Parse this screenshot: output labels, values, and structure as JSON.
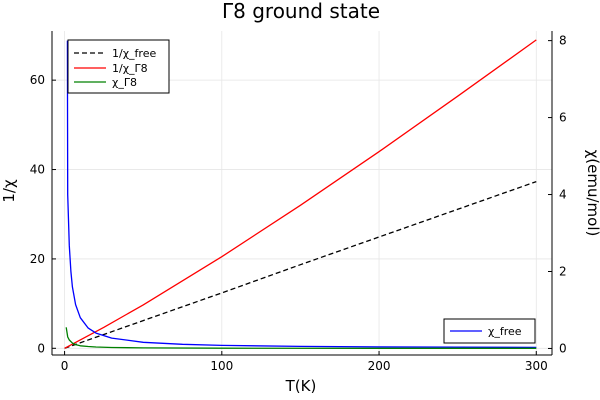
{
  "chart_data": {
    "type": "line",
    "title": "Γ8 ground state",
    "xlabel": "T(K)",
    "ylabel_left": "1/χ",
    "ylabel_right": "χ(emu/mol)",
    "xlim": [
      -8,
      310
    ],
    "ylim_left": [
      -1.5,
      71
    ],
    "ylim_right": [
      -0.17,
      8.25
    ],
    "x_ticks": [
      0,
      100,
      200,
      300
    ],
    "y_ticks_left": [
      0,
      20,
      40,
      60
    ],
    "y_ticks_right": [
      0,
      2,
      4,
      6,
      8
    ],
    "grid": true,
    "legend_left": {
      "placement": "top-left",
      "entries": [
        {
          "label": "1/χ_free",
          "color": "#000000",
          "style": "dashed"
        },
        {
          "label": "1/χ_Γ8",
          "color": "#ff0000",
          "style": "solid"
        },
        {
          "label": "χ_Γ8",
          "color": "#008000",
          "style": "solid"
        }
      ]
    },
    "legend_right": {
      "placement": "bottom-right",
      "entries": [
        {
          "label": "χ_free",
          "color": "#0000ff",
          "style": "solid"
        }
      ]
    },
    "series": [
      {
        "name": "1/χ_free",
        "axis": "left",
        "color": "#000000",
        "style": "dashed",
        "x": [
          0,
          50,
          100,
          150,
          200,
          250,
          300
        ],
        "y": [
          0,
          6.2,
          12.4,
          18.7,
          24.9,
          31.1,
          37.3
        ]
      },
      {
        "name": "1/χ_Γ8",
        "axis": "left",
        "color": "#ff0000",
        "style": "solid",
        "x": [
          0,
          25,
          50,
          100,
          150,
          200,
          250,
          300
        ],
        "y": [
          0,
          4.7,
          9.7,
          20.5,
          32.0,
          44.0,
          56.4,
          69.0
        ]
      },
      {
        "name": "χ_free",
        "axis": "right",
        "color": "#0000ff",
        "style": "solid",
        "x": [
          1.8,
          2,
          3,
          4,
          5,
          7,
          10,
          15,
          20,
          30,
          50,
          75,
          100,
          150,
          200,
          250,
          300
        ],
        "y": [
          8.0,
          4.0,
          2.67,
          2.0,
          1.6,
          1.14,
          0.8,
          0.53,
          0.4,
          0.27,
          0.16,
          0.107,
          0.08,
          0.053,
          0.04,
          0.032,
          0.027
        ]
      },
      {
        "name": "χ_Γ8",
        "axis": "right",
        "color": "#008000",
        "style": "solid",
        "x": [
          1,
          2,
          3,
          5,
          7,
          10,
          15,
          20,
          30,
          50,
          100,
          200,
          300
        ],
        "y": [
          0.55,
          0.3,
          0.22,
          0.14,
          0.1,
          0.07,
          0.05,
          0.037,
          0.025,
          0.015,
          0.008,
          0.004,
          0.003
        ]
      }
    ]
  }
}
